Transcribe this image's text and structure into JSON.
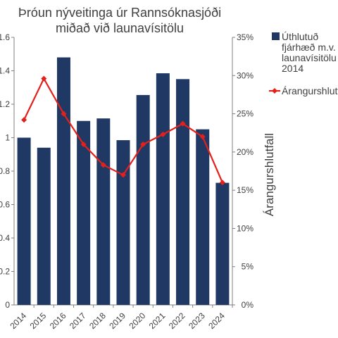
{
  "chart_data": {
    "type": "bar",
    "title_lines": [
      "Þróun nýveitinga úr Rannsóknasjóði",
      "miðað við launavísitölu"
    ],
    "categories": [
      "2014",
      "2015",
      "2016",
      "2017",
      "2018",
      "2019",
      "2020",
      "2021",
      "2022",
      "2023",
      "2024"
    ],
    "series": [
      {
        "name": "Úthlutuð fjárhæð m.v. launavísitölu 2014",
        "legend_lines": [
          "Úthlutuð",
          "fjárhæð m.v.",
          "launavísitölu",
          "2014"
        ],
        "type": "bar",
        "axis": "left",
        "color": "#1f3864",
        "values": [
          1.0,
          0.94,
          1.48,
          1.1,
          1.115,
          0.985,
          1.255,
          1.385,
          1.35,
          1.05,
          0.73
        ]
      },
      {
        "name": "Árangurshlutfall",
        "type": "line",
        "axis": "right",
        "color": "#e3211c",
        "values": [
          24.2,
          29.6,
          25.0,
          21.0,
          18.3,
          17.0,
          21.0,
          22.3,
          23.7,
          22.0,
          16.0
        ]
      }
    ],
    "ylim_left": [
      0,
      1.6
    ],
    "ylim_right": [
      0,
      35
    ],
    "yticks_left": [
      "0",
      "0.2",
      "0.4",
      "0.6",
      "0.8",
      "1",
      "1.2",
      "1.4",
      "1.6"
    ],
    "yticks_right": [
      "0%",
      "5%",
      "10%",
      "15%",
      "20%",
      "25%",
      "30%",
      "35%"
    ],
    "ylabel_right": "Árangurshlutfall",
    "xlabel": "",
    "ylabel": "",
    "grid": false,
    "legend_position": "right"
  }
}
